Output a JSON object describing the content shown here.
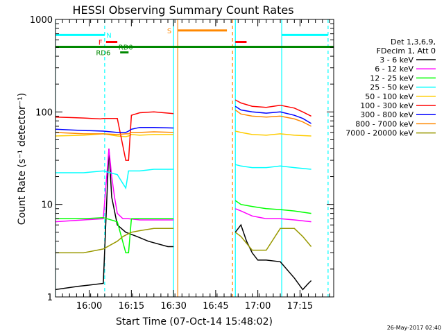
{
  "chart_data": {
    "type": "line",
    "title": "HESSI Observing Summary Count Rates",
    "xlabel": "Start Time (07-Oct-14 15:48:02)",
    "ylabel": "Count Rate (s⁻¹ detector⁻¹)",
    "yscale": "log",
    "xlim_minutes": [
      0,
      99
    ],
    "ylim": [
      1,
      1000
    ],
    "x_ticks": [
      "16:00",
      "16:15",
      "16:30",
      "16:45",
      "17:00",
      "17:15"
    ],
    "x_tick_minutes": [
      12,
      27,
      42,
      57,
      72,
      87
    ],
    "y_ticks": [
      "1",
      "10",
      "100",
      "1000"
    ],
    "y_tick_values": [
      1,
      10,
      100,
      1000
    ],
    "legend_header": [
      "Det 1,3,6,9,",
      "FDecim 1, Att 0"
    ],
    "legend_placement": "right",
    "series": [
      {
        "name": "3 - 6 keV",
        "color": "#000000",
        "segments": [
          {
            "x": [
              0,
              8,
              17,
              19,
              20,
              22,
              25,
              29,
              33,
              40,
              42
            ],
            "y": [
              1.2,
              1.3,
              1.4,
              40,
              12,
              6,
              5,
              4.5,
              4,
              3.5,
              3.5
            ]
          },
          {
            "x": [
              64,
              66,
              68,
              70,
              72,
              75,
              80,
              85,
              88,
              90,
              91
            ],
            "y": [
              5,
              6,
              4,
              3,
              2.5,
              2.5,
              2.4,
              1.6,
              1.2,
              1.4,
              1.5
            ]
          }
        ]
      },
      {
        "name": "6 - 12 keV",
        "color": "#ff00ff",
        "segments": [
          {
            "x": [
              0,
              10,
              17,
              19,
              20,
              21,
              22,
              24,
              26,
              30,
              35,
              42
            ],
            "y": [
              6.5,
              6.8,
              7,
              40,
              20,
              12,
              8,
              7,
              7,
              6.8,
              6.8,
              6.8
            ]
          },
          {
            "x": [
              64,
              66,
              70,
              75,
              80,
              85,
              91
            ],
            "y": [
              9,
              8.5,
              7.5,
              7,
              7,
              6.8,
              6.5
            ]
          }
        ]
      },
      {
        "name": "12 - 25 keV",
        "color": "#00ff00",
        "segments": [
          {
            "x": [
              0,
              10,
              17,
              22,
              25,
              26,
              27,
              30,
              35,
              42
            ],
            "y": [
              7,
              7,
              7.2,
              6.5,
              3,
              3,
              7,
              7,
              7,
              7
            ]
          },
          {
            "x": [
              64,
              66,
              70,
              75,
              80,
              85,
              91
            ],
            "y": [
              11,
              10,
              9.5,
              9,
              8.8,
              8.5,
              8
            ]
          }
        ]
      },
      {
        "name": "25 - 50 keV",
        "color": "#00ffff",
        "segments": [
          {
            "x": [
              0,
              10,
              17,
              22,
              25,
              26,
              30,
              35,
              42
            ],
            "y": [
              22,
              22,
              23,
              21,
              15,
              23,
              23,
              24,
              24
            ]
          },
          {
            "x": [
              64,
              66,
              70,
              75,
              80,
              85,
              91
            ],
            "y": [
              27,
              26,
              25,
              25,
              26,
              25,
              24
            ]
          }
        ]
      },
      {
        "name": "50 - 100 keV",
        "color": "#ffcc00",
        "segments": [
          {
            "x": [
              0,
              10,
              17,
              22,
              25,
              26,
              27,
              30,
              35,
              42
            ],
            "y": [
              55,
              56,
              58,
              55,
              54,
              55,
              57,
              56,
              57,
              57
            ]
          },
          {
            "x": [
              64,
              66,
              70,
              75,
              80,
              85,
              91
            ],
            "y": [
              62,
              60,
              57,
              56,
              58,
              56,
              55
            ]
          }
        ]
      },
      {
        "name": "100 - 300 keV",
        "color": "#ff0000",
        "segments": [
          {
            "x": [
              0,
              5,
              10,
              16,
              17,
              22,
              25,
              26,
              27,
              30,
              35,
              42
            ],
            "y": [
              88,
              87,
              86,
              84,
              85,
              85,
              30,
              30,
              92,
              98,
              100,
              96
            ]
          },
          {
            "x": [
              64,
              66,
              70,
              75,
              80,
              85,
              88,
              91
            ],
            "y": [
              135,
              125,
              115,
              112,
              118,
              110,
              100,
              90
            ]
          }
        ]
      },
      {
        "name": "300 - 800 keV",
        "color": "#0000ff",
        "segments": [
          {
            "x": [
              0,
              5,
              10,
              17,
              22,
              25,
              26,
              27,
              30,
              35,
              42
            ],
            "y": [
              65,
              64,
              63,
              62,
              60,
              60,
              62,
              65,
              68,
              68,
              67
            ]
          },
          {
            "x": [
              64,
              66,
              70,
              75,
              80,
              85,
              88,
              91
            ],
            "y": [
              115,
              105,
              100,
              97,
              100,
              92,
              85,
              75
            ]
          }
        ]
      },
      {
        "name": "800 - 7000 keV",
        "color": "#ff8800",
        "segments": [
          {
            "x": [
              0,
              5,
              10,
              17,
              22,
              25,
              26,
              27,
              30,
              35,
              42
            ],
            "y": [
              60,
              59,
              58,
              58,
              57,
              58,
              58,
              60,
              60,
              61,
              60
            ]
          },
          {
            "x": [
              64,
              66,
              70,
              75,
              80,
              85,
              88,
              91
            ],
            "y": [
              105,
              95,
              90,
              88,
              90,
              84,
              78,
              70
            ]
          }
        ]
      },
      {
        "name": "7000 - 20000 keV",
        "color": "#999900",
        "segments": [
          {
            "x": [
              0,
              5,
              10,
              17,
              22,
              24,
              27,
              30,
              35,
              42
            ],
            "y": [
              3,
              3,
              3,
              3.3,
              4,
              4.5,
              5,
              5.2,
              5.5,
              5.5
            ]
          },
          {
            "x": [
              64,
              66,
              70,
              75,
              80,
              85,
              88,
              91
            ],
            "y": [
              5,
              4.5,
              3.2,
              3.2,
              5.5,
              5.5,
              4.5,
              3.5
            ]
          }
        ]
      }
    ],
    "vertical_lines": [
      {
        "x": 0,
        "color": "#00ffff",
        "style": "solid"
      },
      {
        "x": 17.5,
        "color": "#00ffff",
        "style": "dashed"
      },
      {
        "x": 42,
        "color": "#00ffff",
        "style": "solid"
      },
      {
        "x": 43.5,
        "color": "#ff8800",
        "style": "solid"
      },
      {
        "x": 63,
        "color": "#ff8800",
        "style": "dashed"
      },
      {
        "x": 64,
        "color": "#00ffff",
        "style": "solid"
      },
      {
        "x": 80.5,
        "color": "#00ffff",
        "style": "solid"
      },
      {
        "x": 97,
        "color": "#00ffff",
        "style": "dashed"
      }
    ],
    "flag_bars": [
      {
        "label": "N",
        "color": "#00ffff",
        "intervals": [
          [
            0,
            17.5
          ],
          [
            80.5,
            97
          ]
        ],
        "level": 680,
        "label_at": 19
      },
      {
        "label": "S",
        "color": "#ff8800",
        "intervals": [
          [
            43.5,
            61
          ]
        ],
        "level": 760,
        "label_at": 40.5
      },
      {
        "label": "F",
        "color": "#ff0000",
        "intervals": [
          [
            18,
            22
          ],
          [
            64,
            68
          ]
        ],
        "level": 570,
        "label_at": 16
      },
      {
        "label": "RD0",
        "color": "#008800",
        "intervals": [
          [
            0,
            99
          ]
        ],
        "level": 505,
        "label_at": 25
      },
      {
        "label": "RD6",
        "color": "#008800",
        "intervals": [
          [
            23,
            26
          ]
        ],
        "level": 440,
        "label_at": 17
      }
    ]
  },
  "footer_timestamp": "26-May-2017 02:40"
}
